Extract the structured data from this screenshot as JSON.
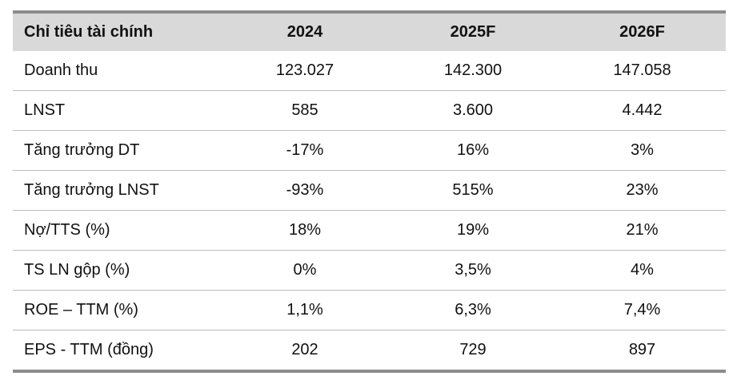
{
  "table": {
    "headers": [
      "Chỉ tiêu tài chính",
      "2024",
      "2025F",
      "2026F"
    ],
    "rows": [
      [
        "Doanh thu",
        "123.027",
        "142.300",
        "147.058"
      ],
      [
        "LNST",
        "585",
        "3.600",
        "4.442"
      ],
      [
        "Tăng trưởng DT",
        "-17%",
        "16%",
        "3%"
      ],
      [
        "Tăng trưởng LNST",
        "-93%",
        "515%",
        "23%"
      ],
      [
        "Nợ/TTS (%)",
        "18%",
        "19%",
        "21%"
      ],
      [
        "TS LN gộp (%)",
        "0%",
        "3,5%",
        "4%"
      ],
      [
        "ROE – TTM (%)",
        "1,1%",
        "6,3%",
        "7,4%"
      ],
      [
        "EPS - TTM (đồng)",
        "202",
        "729",
        "897"
      ]
    ]
  }
}
